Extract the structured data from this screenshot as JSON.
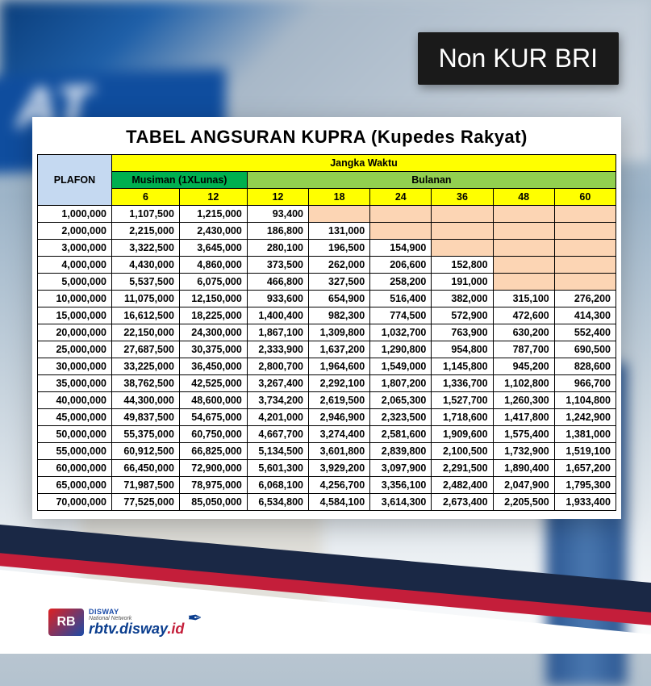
{
  "badge": {
    "text": "Non KUR BRI"
  },
  "table": {
    "title": "TABEL ANGSURAN KUPRA (Kupedes Rakyat)",
    "headers": {
      "plafon": "PLAFON",
      "jangka_waktu": "Jangka Waktu",
      "musiman": "Musiman (1XLunas)",
      "bulanan": "Bulanan",
      "musiman_sub": [
        "6",
        "12"
      ],
      "bulanan_sub": [
        "12",
        "18",
        "24",
        "36",
        "48",
        "60"
      ]
    },
    "colors": {
      "plafon_bg": "#c5d9f1",
      "jangka_bg": "#ffff00",
      "musiman_bg": "#00b050",
      "bulanan_bg": "#92d050",
      "sub_bg": "#ffff00",
      "empty_bg": "#fcd5b4",
      "border": "#000000"
    },
    "rows": [
      {
        "plafon": "1,000,000",
        "m6": "1,107,500",
        "m12": "1,215,000",
        "b12": "93,400",
        "b18": "",
        "b24": "",
        "b36": "",
        "b48": "",
        "b60": ""
      },
      {
        "plafon": "2,000,000",
        "m6": "2,215,000",
        "m12": "2,430,000",
        "b12": "186,800",
        "b18": "131,000",
        "b24": "",
        "b36": "",
        "b48": "",
        "b60": ""
      },
      {
        "plafon": "3,000,000",
        "m6": "3,322,500",
        "m12": "3,645,000",
        "b12": "280,100",
        "b18": "196,500",
        "b24": "154,900",
        "b36": "",
        "b48": "",
        "b60": ""
      },
      {
        "plafon": "4,000,000",
        "m6": "4,430,000",
        "m12": "4,860,000",
        "b12": "373,500",
        "b18": "262,000",
        "b24": "206,600",
        "b36": "152,800",
        "b48": "",
        "b60": ""
      },
      {
        "plafon": "5,000,000",
        "m6": "5,537,500",
        "m12": "6,075,000",
        "b12": "466,800",
        "b18": "327,500",
        "b24": "258,200",
        "b36": "191,000",
        "b48": "",
        "b60": ""
      },
      {
        "plafon": "10,000,000",
        "m6": "11,075,000",
        "m12": "12,150,000",
        "b12": "933,600",
        "b18": "654,900",
        "b24": "516,400",
        "b36": "382,000",
        "b48": "315,100",
        "b60": "276,200"
      },
      {
        "plafon": "15,000,000",
        "m6": "16,612,500",
        "m12": "18,225,000",
        "b12": "1,400,400",
        "b18": "982,300",
        "b24": "774,500",
        "b36": "572,900",
        "b48": "472,600",
        "b60": "414,300"
      },
      {
        "plafon": "20,000,000",
        "m6": "22,150,000",
        "m12": "24,300,000",
        "b12": "1,867,100",
        "b18": "1,309,800",
        "b24": "1,032,700",
        "b36": "763,900",
        "b48": "630,200",
        "b60": "552,400"
      },
      {
        "plafon": "25,000,000",
        "m6": "27,687,500",
        "m12": "30,375,000",
        "b12": "2,333,900",
        "b18": "1,637,200",
        "b24": "1,290,800",
        "b36": "954,800",
        "b48": "787,700",
        "b60": "690,500"
      },
      {
        "plafon": "30,000,000",
        "m6": "33,225,000",
        "m12": "36,450,000",
        "b12": "2,800,700",
        "b18": "1,964,600",
        "b24": "1,549,000",
        "b36": "1,145,800",
        "b48": "945,200",
        "b60": "828,600"
      },
      {
        "plafon": "35,000,000",
        "m6": "38,762,500",
        "m12": "42,525,000",
        "b12": "3,267,400",
        "b18": "2,292,100",
        "b24": "1,807,200",
        "b36": "1,336,700",
        "b48": "1,102,800",
        "b60": "966,700"
      },
      {
        "plafon": "40,000,000",
        "m6": "44,300,000",
        "m12": "48,600,000",
        "b12": "3,734,200",
        "b18": "2,619,500",
        "b24": "2,065,300",
        "b36": "1,527,700",
        "b48": "1,260,300",
        "b60": "1,104,800"
      },
      {
        "plafon": "45,000,000",
        "m6": "49,837,500",
        "m12": "54,675,000",
        "b12": "4,201,000",
        "b18": "2,946,900",
        "b24": "2,323,500",
        "b36": "1,718,600",
        "b48": "1,417,800",
        "b60": "1,242,900"
      },
      {
        "plafon": "50,000,000",
        "m6": "55,375,000",
        "m12": "60,750,000",
        "b12": "4,667,700",
        "b18": "3,274,400",
        "b24": "2,581,600",
        "b36": "1,909,600",
        "b48": "1,575,400",
        "b60": "1,381,000"
      },
      {
        "plafon": "55,000,000",
        "m6": "60,912,500",
        "m12": "66,825,000",
        "b12": "5,134,500",
        "b18": "3,601,800",
        "b24": "2,839,800",
        "b36": "2,100,500",
        "b48": "1,732,900",
        "b60": "1,519,100"
      },
      {
        "plafon": "60,000,000",
        "m6": "66,450,000",
        "m12": "72,900,000",
        "b12": "5,601,300",
        "b18": "3,929,200",
        "b24": "3,097,900",
        "b36": "2,291,500",
        "b48": "1,890,400",
        "b60": "1,657,200"
      },
      {
        "plafon": "65,000,000",
        "m6": "71,987,500",
        "m12": "78,975,000",
        "b12": "6,068,100",
        "b18": "4,256,700",
        "b24": "3,356,100",
        "b36": "2,482,400",
        "b48": "2,047,900",
        "b60": "1,795,300"
      },
      {
        "plafon": "70,000,000",
        "m6": "77,525,000",
        "m12": "85,050,000",
        "b12": "6,534,800",
        "b18": "4,584,100",
        "b24": "3,614,300",
        "b36": "2,673,400",
        "b48": "2,205,500",
        "b60": "1,933,400"
      }
    ]
  },
  "footer": {
    "logo_initials": "RB",
    "disway_label": "DISWAY",
    "network_label": "National Network",
    "url_part1": "rbtv.disway",
    "url_part2": ".id"
  }
}
